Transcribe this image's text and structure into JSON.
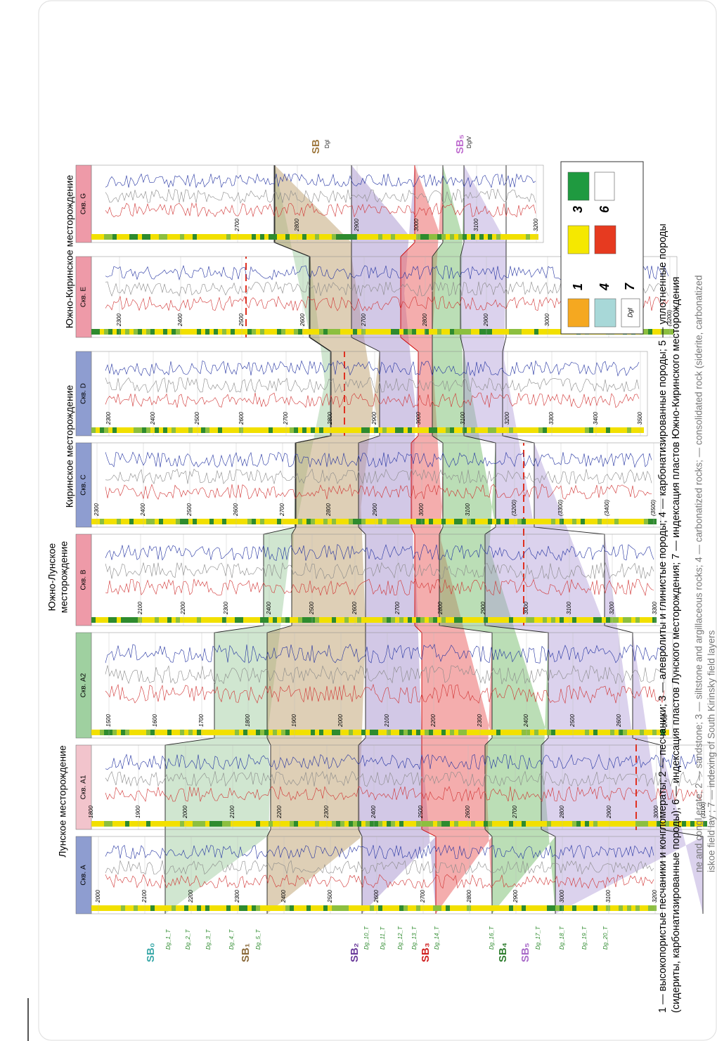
{
  "fields": [
    "Лунское месторождение",
    "Южно-Лунское",
    "месторождение",
    "Киринское месторождение",
    "Южно-Киринское месторождение"
  ],
  "wells": [
    {
      "name": "Скв. A",
      "depths": [
        2000,
        2100,
        2200,
        2300,
        2400,
        2500,
        2600,
        2700,
        2800,
        2900,
        3000,
        3100,
        3200
      ]
    },
    {
      "name": "Скв. A1",
      "depths": [
        1800,
        1900,
        2000,
        2100,
        2200,
        2300,
        2400,
        2500,
        2600,
        2700,
        2800,
        2900,
        3000,
        "(3100)"
      ]
    },
    {
      "name": "Скв. A2",
      "depths": [
        1500,
        1600,
        1700,
        1800,
        1900,
        2000,
        2100,
        2200,
        2300,
        2400,
        2500,
        2600,
        2700
      ]
    },
    {
      "name": "Скв. B",
      "depths": [
        2100,
        2200,
        2300,
        2400,
        2500,
        2600,
        2700,
        2800,
        2900,
        3000,
        3100,
        3200,
        3300
      ]
    },
    {
      "name": "Скв. C",
      "depths": [
        2300,
        2400,
        2500,
        2600,
        2700,
        2800,
        2900,
        3000,
        3100,
        "(3200)",
        "(3300)",
        "(3400)",
        "(3500)"
      ]
    },
    {
      "name": "Скв. D",
      "depths": [
        2300,
        2400,
        2500,
        2600,
        2700,
        2800,
        2900,
        3000,
        3100,
        3200,
        3300,
        3400,
        3500
      ]
    },
    {
      "name": "Скв. E",
      "depths": [
        2300,
        2400,
        2500,
        2600,
        2700,
        2800,
        2900,
        3000,
        3100,
        "(3200)"
      ]
    },
    {
      "name": "Скв. G",
      "depths": [
        2700,
        2800,
        2900,
        3000,
        3100,
        3200
      ]
    }
  ],
  "horizons": [
    "SB₀",
    "Dg_1_T",
    "Dg_2_T",
    "Dg_3_T",
    "Dg_4_T",
    "SB₁",
    "Dg_5_T",
    "SB₂",
    "Dg_10_T",
    "Dg_11_T",
    "Dg_12_T",
    "Dg_13_T",
    "SB₃",
    "Dg_14_T",
    "Dg_16_T",
    "SB₄",
    "SB₅",
    "Dg_17_T",
    "Dg_18_T",
    "Dg_19_T",
    "Dg_20_T"
  ],
  "top_horizons": [
    "SB",
    "Dgl",
    "SB₅",
    "DglV"
  ],
  "legend": {
    "numbers": [
      "1",
      "3",
      "4",
      "6",
      "7"
    ],
    "box_label": "Dgl"
  },
  "caption": {
    "ru": [
      "1 — высокопористые песчаники и конгломераты; 2 — песчаники; 3 — алевролиты и глинистые породы; 4 — карбонатизированные породы; 5 — уплотненные породы",
      "(сидериты, карбонатизированные породы); 6 — индексация пластов Лунского месторождения; 7 — индексация пластов Южно-Киринского месторождения"
    ],
    "en": [
      "ne and congl   erate; 2 — sandstone; 3 — siltstone and argillaceous rocks; 4 — carbonatized rocks;   — consolidated rock (siderite, carbonatized",
      "iskoe field lay   ; 7 — indexing of South Kirinsky field layers"
    ]
  }
}
